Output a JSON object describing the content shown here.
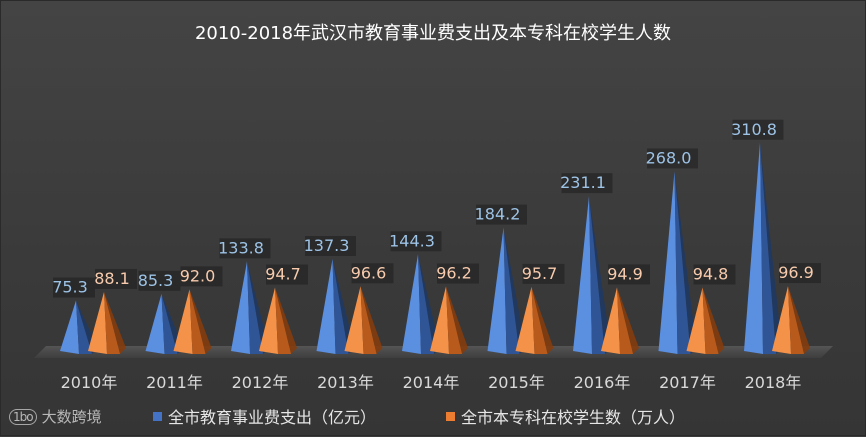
{
  "chart_data": {
    "type": "bar",
    "title": "2010-2018年武汉市教育事业费支出及本专科在校学生人数",
    "categories": [
      "2010年",
      "2011年",
      "2012年",
      "2013年",
      "2014年",
      "2015年",
      "2016年",
      "2017年",
      "2018年"
    ],
    "series": [
      {
        "name": "全市教育事业费支出（亿元）",
        "color": "#4472c4",
        "values": [
          75.3,
          85.3,
          133.8,
          137.3,
          144.3,
          184.2,
          231.1,
          268.0,
          310.8
        ],
        "labels": [
          "75.3",
          "85.3",
          "133.8",
          "137.3",
          "144.3",
          "184.2",
          "231.1",
          "268.0",
          "310.8"
        ]
      },
      {
        "name": "全市本专科在校学生数（万人）",
        "color": "#ed7d31",
        "values": [
          88.1,
          92.0,
          94.7,
          96.6,
          96.2,
          95.7,
          94.9,
          94.8,
          96.9
        ],
        "labels": [
          "88.1",
          "92.0",
          "94.7",
          "96.6",
          "96.2",
          "95.7",
          "94.9",
          "94.8",
          "96.9"
        ]
      }
    ],
    "shape": "pyramid",
    "grid": false,
    "legend": "bottom"
  },
  "watermark": {
    "logo": "1bo",
    "text": "大数跨境"
  }
}
